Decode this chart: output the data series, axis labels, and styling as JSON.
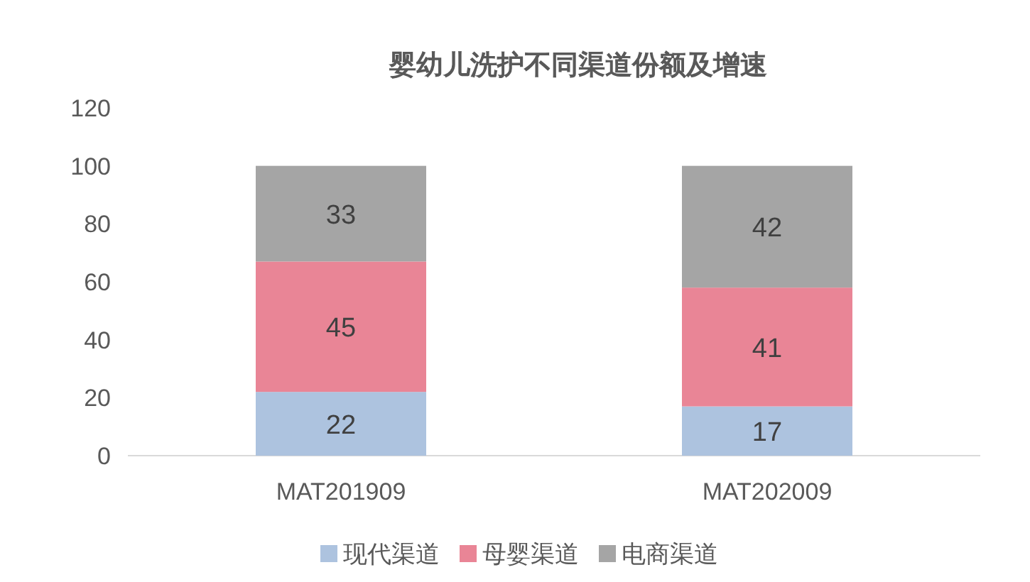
{
  "chart_data": {
    "type": "bar",
    "title": "婴幼儿洗护不同渠道份额及增速",
    "categories": [
      "MAT201909",
      "MAT202009"
    ],
    "stacked": true,
    "series": [
      {
        "name": "现代渠道",
        "color": "#adc3df",
        "values": [
          22,
          17
        ]
      },
      {
        "name": "母婴渠道",
        "color": "#e98596",
        "values": [
          45,
          41
        ]
      },
      {
        "name": "电商渠道",
        "color": "#a5a5a5",
        "values": [
          33,
          42
        ]
      }
    ],
    "ylim": [
      0,
      120
    ],
    "yticks": [
      0,
      20,
      40,
      60,
      80,
      100,
      120
    ],
    "grid": false,
    "legend": "bottom",
    "data_labels": true
  }
}
